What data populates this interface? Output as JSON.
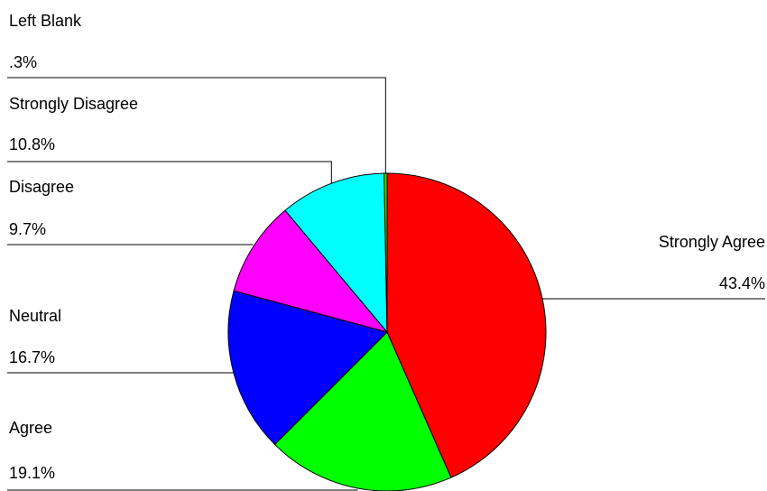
{
  "chart_data": {
    "type": "pie",
    "categories": [
      "Strongly Agree",
      "Agree",
      "Neutral",
      "Disagree",
      "Strongly Disagree",
      "Left Blank"
    ],
    "values": [
      43.4,
      19.1,
      16.7,
      9.7,
      10.8,
      0.3
    ],
    "value_labels": [
      "43.4%",
      "19.1%",
      "16.7%",
      "9.7%",
      "10.8%",
      ".3%"
    ],
    "colors": [
      "#ff0000",
      "#00ff00",
      "#0000ff",
      "#ff00ff",
      "#00ffff",
      "#00ff00"
    ],
    "start_angle": "12 o'clock",
    "direction": "clockwise",
    "legend": "none",
    "title": ""
  }
}
